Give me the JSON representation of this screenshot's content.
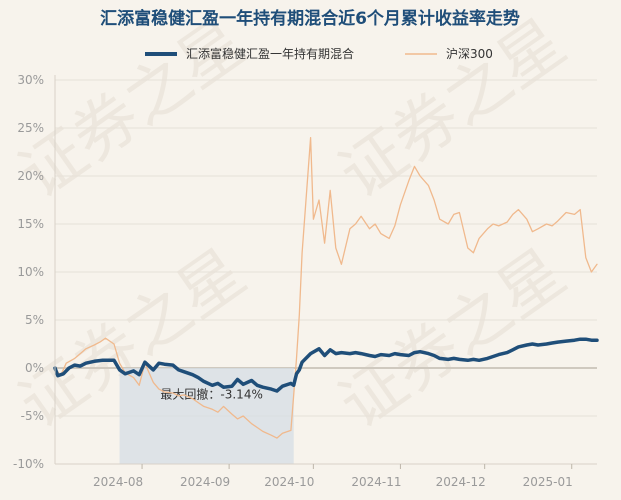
{
  "chart_data": {
    "type": "line",
    "title": "汇添富稳健汇盈一年持有期混合近6个月累计收益率走势",
    "watermark": "证券之星",
    "xlabel": "",
    "ylabel": "",
    "x_ticks": [
      "2024-08",
      "2024-09",
      "2024-10",
      "2024-11",
      "2024-12",
      "2025-01"
    ],
    "y_ticks": [
      "30%",
      "25%",
      "20%",
      "15%",
      "10%",
      "5%",
      "0%",
      "-5%",
      "-10%"
    ],
    "ylim": [
      -10,
      30
    ],
    "x_range": [
      "2024-07-01",
      "2025-01-10"
    ],
    "grid": "horizontal",
    "legend_position": "top",
    "max_drawdown": {
      "label": "最大回撤：-3.14%",
      "start": "2024-07-24",
      "end": "2024-09-24"
    },
    "series": [
      {
        "name": "汇添富稳健汇盈一年持有期混合",
        "color": "#1f4e79",
        "points": [
          [
            "2024-07-01",
            0.0
          ],
          [
            "2024-07-02",
            -0.8
          ],
          [
            "2024-07-04",
            -0.6
          ],
          [
            "2024-07-06",
            0.0
          ],
          [
            "2024-07-08",
            0.3
          ],
          [
            "2024-07-10",
            0.2
          ],
          [
            "2024-07-12",
            0.5
          ],
          [
            "2024-07-15",
            0.7
          ],
          [
            "2024-07-18",
            0.8
          ],
          [
            "2024-07-22",
            0.8
          ],
          [
            "2024-07-24",
            -0.2
          ],
          [
            "2024-07-26",
            -0.6
          ],
          [
            "2024-07-29",
            -0.3
          ],
          [
            "2024-07-31",
            -0.7
          ],
          [
            "2024-08-02",
            0.6
          ],
          [
            "2024-08-05",
            -0.2
          ],
          [
            "2024-08-07",
            0.5
          ],
          [
            "2024-08-09",
            0.4
          ],
          [
            "2024-08-12",
            0.3
          ],
          [
            "2024-08-14",
            -0.2
          ],
          [
            "2024-08-16",
            -0.4
          ],
          [
            "2024-08-19",
            -0.7
          ],
          [
            "2024-08-21",
            -1.0
          ],
          [
            "2024-08-23",
            -1.4
          ],
          [
            "2024-08-26",
            -1.8
          ],
          [
            "2024-08-28",
            -1.6
          ],
          [
            "2024-08-30",
            -2.0
          ],
          [
            "2024-09-02",
            -1.9
          ],
          [
            "2024-09-04",
            -1.2
          ],
          [
            "2024-09-06",
            -1.7
          ],
          [
            "2024-09-09",
            -1.3
          ],
          [
            "2024-09-11",
            -1.8
          ],
          [
            "2024-09-13",
            -2.0
          ],
          [
            "2024-09-16",
            -2.2
          ],
          [
            "2024-09-18",
            -2.4
          ],
          [
            "2024-09-20",
            -1.9
          ],
          [
            "2024-09-23",
            -1.6
          ],
          [
            "2024-09-24",
            -1.8
          ],
          [
            "2024-09-25",
            -0.6
          ],
          [
            "2024-09-26",
            -0.2
          ],
          [
            "2024-09-27",
            0.6
          ],
          [
            "2024-09-30",
            1.5
          ],
          [
            "2024-10-03",
            2.0
          ],
          [
            "2024-10-05",
            1.3
          ],
          [
            "2024-10-07",
            1.9
          ],
          [
            "2024-10-09",
            1.5
          ],
          [
            "2024-10-11",
            1.6
          ],
          [
            "2024-10-14",
            1.5
          ],
          [
            "2024-10-16",
            1.6
          ],
          [
            "2024-10-18",
            1.5
          ],
          [
            "2024-10-21",
            1.3
          ],
          [
            "2024-10-23",
            1.2
          ],
          [
            "2024-10-25",
            1.4
          ],
          [
            "2024-10-28",
            1.3
          ],
          [
            "2024-10-30",
            1.5
          ],
          [
            "2024-11-01",
            1.4
          ],
          [
            "2024-11-04",
            1.3
          ],
          [
            "2024-11-06",
            1.6
          ],
          [
            "2024-11-08",
            1.7
          ],
          [
            "2024-11-11",
            1.5
          ],
          [
            "2024-11-13",
            1.3
          ],
          [
            "2024-11-15",
            1.0
          ],
          [
            "2024-11-18",
            0.9
          ],
          [
            "2024-11-20",
            1.0
          ],
          [
            "2024-11-22",
            0.9
          ],
          [
            "2024-11-25",
            0.8
          ],
          [
            "2024-11-27",
            0.9
          ],
          [
            "2024-11-29",
            0.8
          ],
          [
            "2024-12-02",
            1.0
          ],
          [
            "2024-12-04",
            1.2
          ],
          [
            "2024-12-06",
            1.4
          ],
          [
            "2024-12-09",
            1.6
          ],
          [
            "2024-12-11",
            1.9
          ],
          [
            "2024-12-13",
            2.2
          ],
          [
            "2024-12-16",
            2.4
          ],
          [
            "2024-12-18",
            2.5
          ],
          [
            "2024-12-20",
            2.4
          ],
          [
            "2024-12-23",
            2.5
          ],
          [
            "2024-12-25",
            2.6
          ],
          [
            "2024-12-27",
            2.7
          ],
          [
            "2024-12-30",
            2.8
          ],
          [
            "2025-01-02",
            2.9
          ],
          [
            "2025-01-04",
            3.0
          ],
          [
            "2025-01-06",
            3.0
          ],
          [
            "2025-01-08",
            2.9
          ],
          [
            "2025-01-10",
            2.9
          ]
        ]
      },
      {
        "name": "沪深300",
        "color": "#f0b98d",
        "points": [
          [
            "2024-07-01",
            0.0
          ],
          [
            "2024-07-03",
            -0.8
          ],
          [
            "2024-07-05",
            0.5
          ],
          [
            "2024-07-08",
            1.0
          ],
          [
            "2024-07-10",
            1.5
          ],
          [
            "2024-07-12",
            2.0
          ],
          [
            "2024-07-15",
            2.4
          ],
          [
            "2024-07-17",
            2.7
          ],
          [
            "2024-07-19",
            3.1
          ],
          [
            "2024-07-22",
            2.5
          ],
          [
            "2024-07-24",
            0.5
          ],
          [
            "2024-07-26",
            -0.5
          ],
          [
            "2024-07-29",
            -1.0
          ],
          [
            "2024-07-31",
            -1.8
          ],
          [
            "2024-08-02",
            0.5
          ],
          [
            "2024-08-05",
            -1.5
          ],
          [
            "2024-08-07",
            -2.2
          ],
          [
            "2024-08-09",
            -2.5
          ],
          [
            "2024-08-12",
            -2.6
          ],
          [
            "2024-08-14",
            -2.9
          ],
          [
            "2024-08-16",
            -2.8
          ],
          [
            "2024-08-19",
            -3.2
          ],
          [
            "2024-08-21",
            -3.6
          ],
          [
            "2024-08-23",
            -4.0
          ],
          [
            "2024-08-26",
            -4.3
          ],
          [
            "2024-08-28",
            -4.6
          ],
          [
            "2024-08-30",
            -4.0
          ],
          [
            "2024-09-02",
            -4.8
          ],
          [
            "2024-09-04",
            -5.3
          ],
          [
            "2024-09-06",
            -5.0
          ],
          [
            "2024-09-09",
            -5.8
          ],
          [
            "2024-09-11",
            -6.2
          ],
          [
            "2024-09-13",
            -6.6
          ],
          [
            "2024-09-16",
            -7.0
          ],
          [
            "2024-09-18",
            -7.3
          ],
          [
            "2024-09-20",
            -6.8
          ],
          [
            "2024-09-23",
            -6.5
          ],
          [
            "2024-09-24",
            -2.8
          ],
          [
            "2024-09-25",
            1.0
          ],
          [
            "2024-09-26",
            5.5
          ],
          [
            "2024-09-27",
            12.0
          ],
          [
            "2024-09-30",
            24.0
          ],
          [
            "2024-10-01",
            15.5
          ],
          [
            "2024-10-03",
            17.5
          ],
          [
            "2024-10-05",
            13.0
          ],
          [
            "2024-10-07",
            18.5
          ],
          [
            "2024-10-09",
            12.5
          ],
          [
            "2024-10-11",
            10.8
          ],
          [
            "2024-10-14",
            14.5
          ],
          [
            "2024-10-16",
            15.0
          ],
          [
            "2024-10-18",
            15.8
          ],
          [
            "2024-10-21",
            14.5
          ],
          [
            "2024-10-23",
            15.0
          ],
          [
            "2024-10-25",
            14.0
          ],
          [
            "2024-10-28",
            13.5
          ],
          [
            "2024-10-30",
            14.8
          ],
          [
            "2024-11-01",
            17.0
          ],
          [
            "2024-11-04",
            19.5
          ],
          [
            "2024-11-06",
            21.0
          ],
          [
            "2024-11-08",
            20.0
          ],
          [
            "2024-11-11",
            19.0
          ],
          [
            "2024-11-13",
            17.5
          ],
          [
            "2024-11-15",
            15.5
          ],
          [
            "2024-11-18",
            15.0
          ],
          [
            "2024-11-20",
            16.0
          ],
          [
            "2024-11-22",
            16.2
          ],
          [
            "2024-11-25",
            12.5
          ],
          [
            "2024-11-27",
            12.0
          ],
          [
            "2024-11-29",
            13.5
          ],
          [
            "2024-12-02",
            14.5
          ],
          [
            "2024-12-04",
            15.0
          ],
          [
            "2024-12-06",
            14.8
          ],
          [
            "2024-12-09",
            15.2
          ],
          [
            "2024-12-11",
            16.0
          ],
          [
            "2024-12-13",
            16.5
          ],
          [
            "2024-12-16",
            15.5
          ],
          [
            "2024-12-18",
            14.2
          ],
          [
            "2024-12-20",
            14.5
          ],
          [
            "2024-12-23",
            15.0
          ],
          [
            "2024-12-25",
            14.8
          ],
          [
            "2024-12-27",
            15.3
          ],
          [
            "2024-12-30",
            16.2
          ],
          [
            "2025-01-02",
            16.0
          ],
          [
            "2025-01-04",
            16.5
          ],
          [
            "2025-01-06",
            11.5
          ],
          [
            "2025-01-08",
            10.0
          ],
          [
            "2025-01-10",
            10.8
          ]
        ]
      }
    ]
  }
}
